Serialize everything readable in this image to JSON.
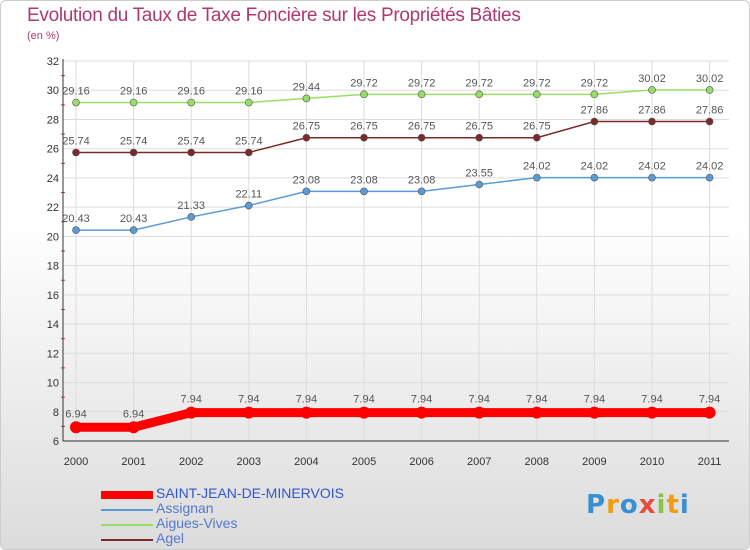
{
  "title": "Evolution du Taux de Taxe Foncière sur les Propriétés Bâties",
  "unit_label": "(en %)",
  "logo": "Proxiti",
  "chart_data": {
    "type": "line",
    "x": [
      "2000",
      "2001",
      "2002",
      "2003",
      "2004",
      "2005",
      "2006",
      "2007",
      "2008",
      "2009",
      "2010",
      "2011"
    ],
    "ylim": [
      6,
      32
    ],
    "yticks": [
      "6",
      "8",
      "10",
      "12",
      "14",
      "16",
      "18",
      "20",
      "22",
      "24",
      "26",
      "28",
      "30",
      "32"
    ],
    "grid": true,
    "legend_position": "bottom-left",
    "series": [
      {
        "name": "SAINT-JEAN-DE-MINERVOIS",
        "color": "#ff0000",
        "values": [
          6.94,
          6.94,
          7.94,
          7.94,
          7.94,
          7.94,
          7.94,
          7.94,
          7.94,
          7.94,
          7.94,
          7.94
        ],
        "labels": [
          "6.94",
          "6.94",
          "7.94",
          "7.94",
          "7.94",
          "7.94",
          "7.94",
          "7.94",
          "7.94",
          "7.94",
          "7.94",
          "7.94"
        ]
      },
      {
        "name": "Assignan",
        "color": "#5a9bd5",
        "values": [
          20.43,
          20.43,
          21.33,
          22.11,
          23.08,
          23.08,
          23.08,
          23.55,
          24.02,
          24.02,
          24.02,
          24.02
        ],
        "labels": [
          "20.43",
          "20.43",
          "21.33",
          "22.11",
          "23.08",
          "23.08",
          "23.08",
          "23.55",
          "24.02",
          "24.02",
          "24.02",
          "24.02"
        ]
      },
      {
        "name": "Aigues-Vives",
        "color": "#99dd66",
        "values": [
          29.16,
          29.16,
          29.16,
          29.16,
          29.44,
          29.72,
          29.72,
          29.72,
          29.72,
          29.72,
          30.02,
          30.02
        ],
        "labels": [
          "29.16",
          "29.16",
          "29.16",
          "29.16",
          "29.44",
          "29.72",
          "29.72",
          "29.72",
          "29.72",
          "29.72",
          "30.02",
          "30.02"
        ]
      },
      {
        "name": "Agel",
        "color": "#7b2a2a",
        "values": [
          25.74,
          25.74,
          25.74,
          25.74,
          26.75,
          26.75,
          26.75,
          26.75,
          26.75,
          27.86,
          27.86,
          27.86
        ],
        "labels": [
          "25.74",
          "25.74",
          "25.74",
          "25.74",
          "26.75",
          "26.75",
          "26.75",
          "26.75",
          "26.75",
          "27.86",
          "27.86",
          "27.86"
        ]
      }
    ]
  }
}
